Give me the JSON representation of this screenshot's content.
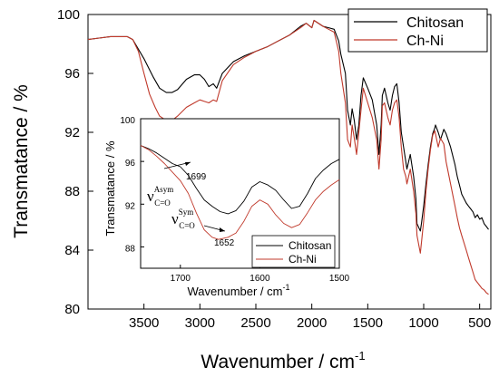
{
  "chart_data": [
    {
      "type": "line",
      "xlabel": "Wavenumber / cm",
      "xlabel_sup": "-1",
      "ylabel": "Transmatance / %",
      "xlim": [
        4000,
        400
      ],
      "ylim": [
        80,
        100
      ],
      "xticks": [
        3500,
        3000,
        2500,
        2000,
        1500,
        1000,
        500
      ],
      "yticks": [
        80,
        84,
        88,
        92,
        96,
        100
      ],
      "legend": {
        "position": "top-right"
      },
      "series": [
        {
          "name": "Chitosan",
          "color": "#000000",
          "x": [
            4000,
            3900,
            3800,
            3700,
            3650,
            3600,
            3500,
            3420,
            3360,
            3300,
            3250,
            3200,
            3120,
            3050,
            3000,
            2960,
            2920,
            2880,
            2850,
            2800,
            2700,
            2600,
            2500,
            2400,
            2300,
            2200,
            2100,
            2050,
            2000,
            1980,
            1900,
            1850,
            1800,
            1760,
            1740,
            1700,
            1680,
            1655,
            1640,
            1620,
            1600,
            1580,
            1560,
            1540,
            1500,
            1460,
            1420,
            1400,
            1380,
            1370,
            1350,
            1320,
            1300,
            1280,
            1260,
            1240,
            1220,
            1200,
            1180,
            1160,
            1150,
            1120,
            1090,
            1070,
            1060,
            1030,
            1020,
            1000,
            980,
            960,
            940,
            920,
            900,
            895,
            870,
            850,
            820,
            800,
            760,
            720,
            700,
            680,
            660,
            640,
            620,
            600,
            580,
            560,
            540,
            520,
            500,
            480,
            460,
            440,
            420
          ],
          "y": [
            98.3,
            98.4,
            98.5,
            98.5,
            98.5,
            98.3,
            97.0,
            95.8,
            95.0,
            94.7,
            94.7,
            94.9,
            95.6,
            95.9,
            95.9,
            95.6,
            95.1,
            95.3,
            95.0,
            96.0,
            96.8,
            97.2,
            97.5,
            97.8,
            98.2,
            98.6,
            99.2,
            99.4,
            99.1,
            99.6,
            99.2,
            99.1,
            99.0,
            98.2,
            97.3,
            96.0,
            93.5,
            92.5,
            93.6,
            92.8,
            91.5,
            92.5,
            94.5,
            95.7,
            95.0,
            94.2,
            92.5,
            90.5,
            92.5,
            94.5,
            95.0,
            94.0,
            93.5,
            94.5,
            95.1,
            95.3,
            94.0,
            92.0,
            91.0,
            90.0,
            89.5,
            90.5,
            89.0,
            87.5,
            85.8,
            85.3,
            85.8,
            87.0,
            88.5,
            89.8,
            91.0,
            91.9,
            92.3,
            92.5,
            92.0,
            91.5,
            92.2,
            91.9,
            91.0,
            89.8,
            89.0,
            88.4,
            87.8,
            87.5,
            87.2,
            87.0,
            86.8,
            86.6,
            86.2,
            86.4,
            86.1,
            86.2,
            85.8,
            85.6,
            85.4
          ]
        },
        {
          "name": "Ch-Ni",
          "color": "#c0392b",
          "x": [
            4000,
            3900,
            3800,
            3700,
            3650,
            3600,
            3550,
            3500,
            3450,
            3400,
            3360,
            3300,
            3250,
            3200,
            3120,
            3050,
            3000,
            2960,
            2920,
            2880,
            2850,
            2800,
            2700,
            2600,
            2500,
            2400,
            2300,
            2200,
            2100,
            2050,
            2000,
            1980,
            1900,
            1850,
            1800,
            1760,
            1740,
            1700,
            1680,
            1655,
            1640,
            1620,
            1600,
            1580,
            1560,
            1540,
            1500,
            1460,
            1420,
            1400,
            1380,
            1370,
            1350,
            1320,
            1300,
            1280,
            1260,
            1240,
            1220,
            1200,
            1180,
            1160,
            1150,
            1120,
            1090,
            1070,
            1060,
            1030,
            1020,
            1000,
            980,
            960,
            940,
            920,
            900,
            870,
            850,
            820,
            800,
            760,
            720,
            700,
            680,
            660,
            640,
            620,
            600,
            580,
            560,
            540,
            520,
            500,
            480,
            460,
            440,
            420
          ],
          "y": [
            98.3,
            98.4,
            98.5,
            98.5,
            98.5,
            98.3,
            97.5,
            96.0,
            94.6,
            93.7,
            93.1,
            92.8,
            92.8,
            93.1,
            93.7,
            94.0,
            94.2,
            94.1,
            94.0,
            94.2,
            94.1,
            95.5,
            96.6,
            97.1,
            97.5,
            97.8,
            98.2,
            98.6,
            99.1,
            99.4,
            99.1,
            99.6,
            99.2,
            99.0,
            98.8,
            97.5,
            96.0,
            94.0,
            91.5,
            91.0,
            92.5,
            91.6,
            90.5,
            92.0,
            93.5,
            95.0,
            94.0,
            93.0,
            91.5,
            89.5,
            91.5,
            93.8,
            94.0,
            93.0,
            92.5,
            93.5,
            94.0,
            94.2,
            93.0,
            91.0,
            89.5,
            89.0,
            88.5,
            89.5,
            88.0,
            86.5,
            85.0,
            83.8,
            84.5,
            86.0,
            88.0,
            89.5,
            90.8,
            91.8,
            92.1,
            91.0,
            91.6,
            91.2,
            90.0,
            88.5,
            87.0,
            86.2,
            85.5,
            85.0,
            84.5,
            84.0,
            83.5,
            83.0,
            82.5,
            82.0,
            81.8,
            81.6,
            81.4,
            81.3,
            81.1,
            81.0
          ]
        }
      ]
    },
    {
      "type": "line",
      "xlabel": "Wavenumber / cm",
      "xlabel_sup": "-1",
      "ylabel": "Transmatance / %",
      "xlim": [
        1750,
        1500
      ],
      "ylim": [
        86,
        100
      ],
      "xticks": [
        1700,
        1600,
        1500
      ],
      "yticks": [
        88,
        92,
        96,
        100
      ],
      "legend": {
        "position": "bottom-right"
      },
      "series": [
        {
          "name": "Chitosan",
          "color": "#000000",
          "x": [
            1750,
            1740,
            1730,
            1720,
            1710,
            1700,
            1690,
            1680,
            1670,
            1660,
            1650,
            1640,
            1630,
            1620,
            1610,
            1600,
            1590,
            1580,
            1570,
            1560,
            1550,
            1540,
            1530,
            1520,
            1510,
            1500
          ],
          "y": [
            97.5,
            97.2,
            96.8,
            96.3,
            95.8,
            95.5,
            94.7,
            93.5,
            92.4,
            91.8,
            91.3,
            91.1,
            91.4,
            92.3,
            93.6,
            94.1,
            93.8,
            93.3,
            92.4,
            91.6,
            91.8,
            93.0,
            94.4,
            95.2,
            95.8,
            96.2
          ]
        },
        {
          "name": "Ch-Ni",
          "color": "#c0392b",
          "x": [
            1750,
            1740,
            1730,
            1720,
            1710,
            1700,
            1690,
            1680,
            1670,
            1660,
            1652,
            1640,
            1630,
            1620,
            1610,
            1600,
            1590,
            1580,
            1570,
            1560,
            1550,
            1540,
            1530,
            1520,
            1510,
            1500
          ],
          "y": [
            97.5,
            97.1,
            96.5,
            95.8,
            95.0,
            94.2,
            93.0,
            91.2,
            89.6,
            88.9,
            88.7,
            88.9,
            89.3,
            90.4,
            91.8,
            92.4,
            92.0,
            91.0,
            90.2,
            89.8,
            90.1,
            91.2,
            92.4,
            93.2,
            93.8,
            94.3
          ]
        }
      ],
      "annotations": [
        {
          "text": "1699",
          "x": 1699,
          "y": 95.5
        },
        {
          "text": "1652",
          "x": 1652,
          "y": 88.7
        },
        {
          "symbol": "ν",
          "sup": "Asym",
          "sub": "C=O"
        },
        {
          "symbol": "ν",
          "sup": "Sym",
          "sub": "C=O"
        }
      ]
    }
  ]
}
